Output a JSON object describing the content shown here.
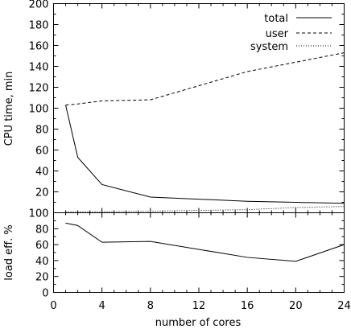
{
  "chart_data": [
    {
      "type": "line",
      "xlabel": "",
      "ylabel": "CPU time, min",
      "xlim": [
        0,
        24
      ],
      "ylim": [
        0,
        200
      ],
      "y_tick_labels": [
        "100",
        "120",
        "140",
        "160",
        "180",
        "200"
      ],
      "y_ticks_minor_labels": [
        "20",
        "40",
        "60",
        "80"
      ],
      "legend_position": "top-right",
      "series": [
        {
          "name": "total",
          "dash": "solid",
          "x": [
            1,
            2,
            4,
            8,
            16,
            20,
            24
          ],
          "values": [
            103,
            53,
            27,
            15,
            11,
            10,
            9
          ]
        },
        {
          "name": "user",
          "dash": "dashed",
          "x": [
            1,
            2,
            4,
            8,
            16,
            20,
            24
          ],
          "values": [
            103,
            104,
            107,
            108,
            135,
            144,
            153
          ]
        },
        {
          "name": "system",
          "dash": "dotted",
          "x": [
            1,
            2,
            4,
            8,
            16,
            20,
            24
          ],
          "values": [
            1,
            1,
            1,
            1.5,
            3,
            5,
            6
          ]
        }
      ]
    },
    {
      "type": "line",
      "xlabel": "number of cores",
      "ylabel": "load eff. %",
      "xlim": [
        0,
        24
      ],
      "ylim": [
        0,
        100
      ],
      "series": [
        {
          "x": [
            1,
            2,
            4,
            8,
            16,
            20,
            24
          ],
          "values": [
            87,
            84,
            63,
            64,
            44,
            39,
            60
          ]
        }
      ]
    }
  ],
  "axes": {
    "x_tick_labels": [
      "0",
      "4",
      "8",
      "12",
      "16",
      "20",
      "24"
    ],
    "top_y_tick_labels": [
      "20",
      "40",
      "60",
      "80",
      "100",
      "120",
      "140",
      "160",
      "180",
      "200"
    ],
    "bottom_y_tick_labels": [
      "0",
      "20",
      "40",
      "60",
      "80",
      "100"
    ]
  }
}
